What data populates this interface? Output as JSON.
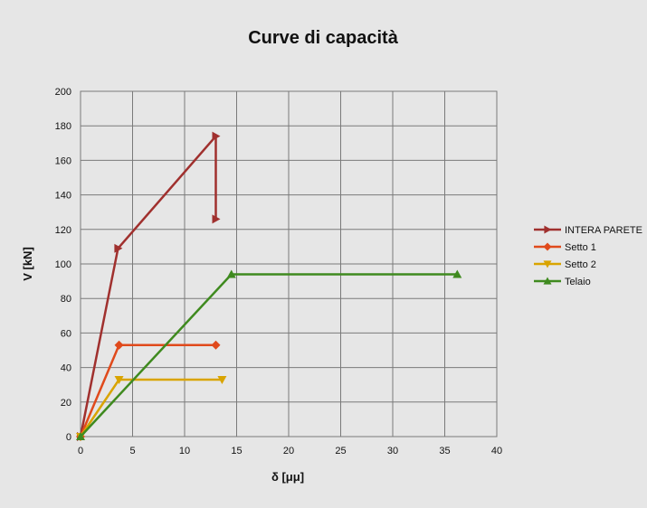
{
  "chart_data": {
    "type": "line",
    "title": "Curve di capacità",
    "xlabel": "δ [μμ]",
    "ylabel": "V [kN]",
    "xlim": [
      0,
      40
    ],
    "ylim": [
      0,
      200
    ],
    "xticks": [
      0,
      5,
      10,
      15,
      20,
      25,
      30,
      35,
      40
    ],
    "yticks": [
      0,
      20,
      40,
      60,
      80,
      100,
      120,
      140,
      160,
      180,
      200
    ],
    "grid": true,
    "legend_position": "right",
    "series": [
      {
        "name": "INTERA PARETE",
        "color": "#a0302e",
        "marker": "triangle-right",
        "x": [
          0,
          3.6,
          13.0,
          13.0
        ],
        "y": [
          0,
          109,
          174,
          126
        ]
      },
      {
        "name": "Setto 1",
        "color": "#e04a1c",
        "marker": "diamond",
        "x": [
          0,
          3.7,
          13.0
        ],
        "y": [
          0,
          53,
          53
        ]
      },
      {
        "name": "Setto 2",
        "color": "#d9a400",
        "marker": "triangle-down",
        "x": [
          0,
          3.7,
          13.6
        ],
        "y": [
          0,
          33,
          33
        ]
      },
      {
        "name": "Telaio",
        "color": "#3f8a1f",
        "marker": "triangle-up",
        "x": [
          0,
          14.5,
          36.2
        ],
        "y": [
          0,
          94,
          94
        ]
      }
    ]
  }
}
